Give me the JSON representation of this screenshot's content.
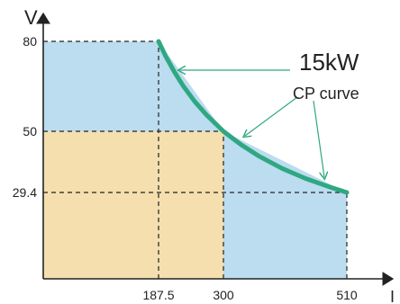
{
  "chart_data": {
    "type": "area",
    "xlabel": "I",
    "ylabel": "V",
    "x_ticks": [
      187.5,
      300,
      510
    ],
    "y_ticks": [
      80,
      50,
      29.4
    ],
    "x_tick_labels": [
      "187.5",
      "300",
      "510"
    ],
    "y_tick_labels": [
      "80",
      "50",
      "29.4"
    ],
    "regions": [
      {
        "name": "outer operating envelope",
        "boundary": [
          [
            0,
            80
          ],
          [
            187.5,
            80
          ],
          [
            300,
            50
          ],
          [
            510,
            29.4
          ],
          [
            510,
            0
          ],
          [
            0,
            0
          ]
        ],
        "color": "#bcdcf0"
      },
      {
        "name": "inner rectangle",
        "x": [
          0,
          300
        ],
        "y": [
          0,
          50
        ],
        "color": "#f5dfae"
      }
    ],
    "series": [
      {
        "name": "CP curve",
        "x": [
          187.5,
          200,
          215,
          230,
          250,
          270,
          300,
          330,
          360,
          400,
          440,
          480,
          510
        ],
        "y": [
          80,
          75,
          69.8,
          65.2,
          60,
          55.6,
          50,
          45.5,
          41.7,
          37.5,
          34.1,
          31.3,
          29.4
        ],
        "color": "#2fa882"
      }
    ],
    "guides": {
      "x": [
        187.5,
        300,
        510
      ],
      "y": [
        80,
        50,
        29.4
      ],
      "style": "dashed"
    },
    "annotations": [
      {
        "text": "15kW"
      },
      {
        "text": "CP curve"
      }
    ],
    "colors": {
      "outer_region": "#bcdcf0",
      "inner_region": "#f5dfae",
      "curve": "#2fa882",
      "arrows": "#2fa882",
      "axes": "#222222"
    }
  }
}
